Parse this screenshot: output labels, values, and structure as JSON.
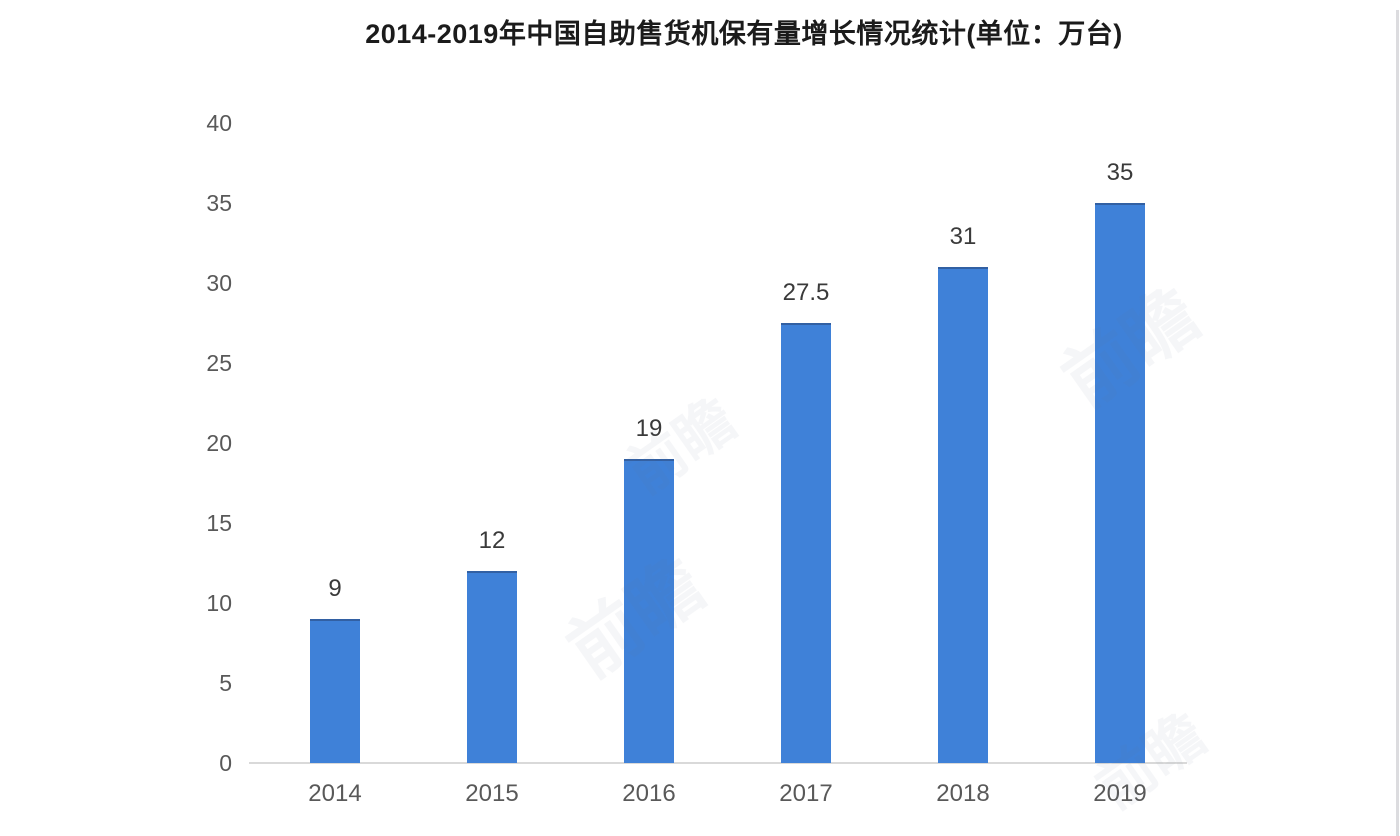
{
  "chart_data": {
    "type": "bar",
    "title": "2014-2019年中国自助售货机保有量增长情况统计(单位：万台)",
    "categories": [
      "2014",
      "2015",
      "2016",
      "2017",
      "2018",
      "2019"
    ],
    "values": [
      9,
      12,
      19,
      27.5,
      31,
      35
    ],
    "value_labels": [
      "9",
      "12",
      "19",
      "27.5",
      "31",
      "35"
    ],
    "xlabel": "",
    "ylabel": "",
    "ylim": [
      0,
      40
    ],
    "yticks": [
      0,
      5,
      10,
      15,
      20,
      25,
      30,
      35,
      40
    ],
    "grid": false,
    "legend": "none",
    "colors": {
      "bar": "#3f81d8",
      "bar_top_edge": "#2f5a99",
      "axis_line": "#d9d9d9",
      "tick_label": "#595959",
      "value_label": "#3a3a3a",
      "title": "#1b1b1b",
      "background": "#ffffff"
    }
  },
  "watermark": {
    "text": "前瞻"
  }
}
